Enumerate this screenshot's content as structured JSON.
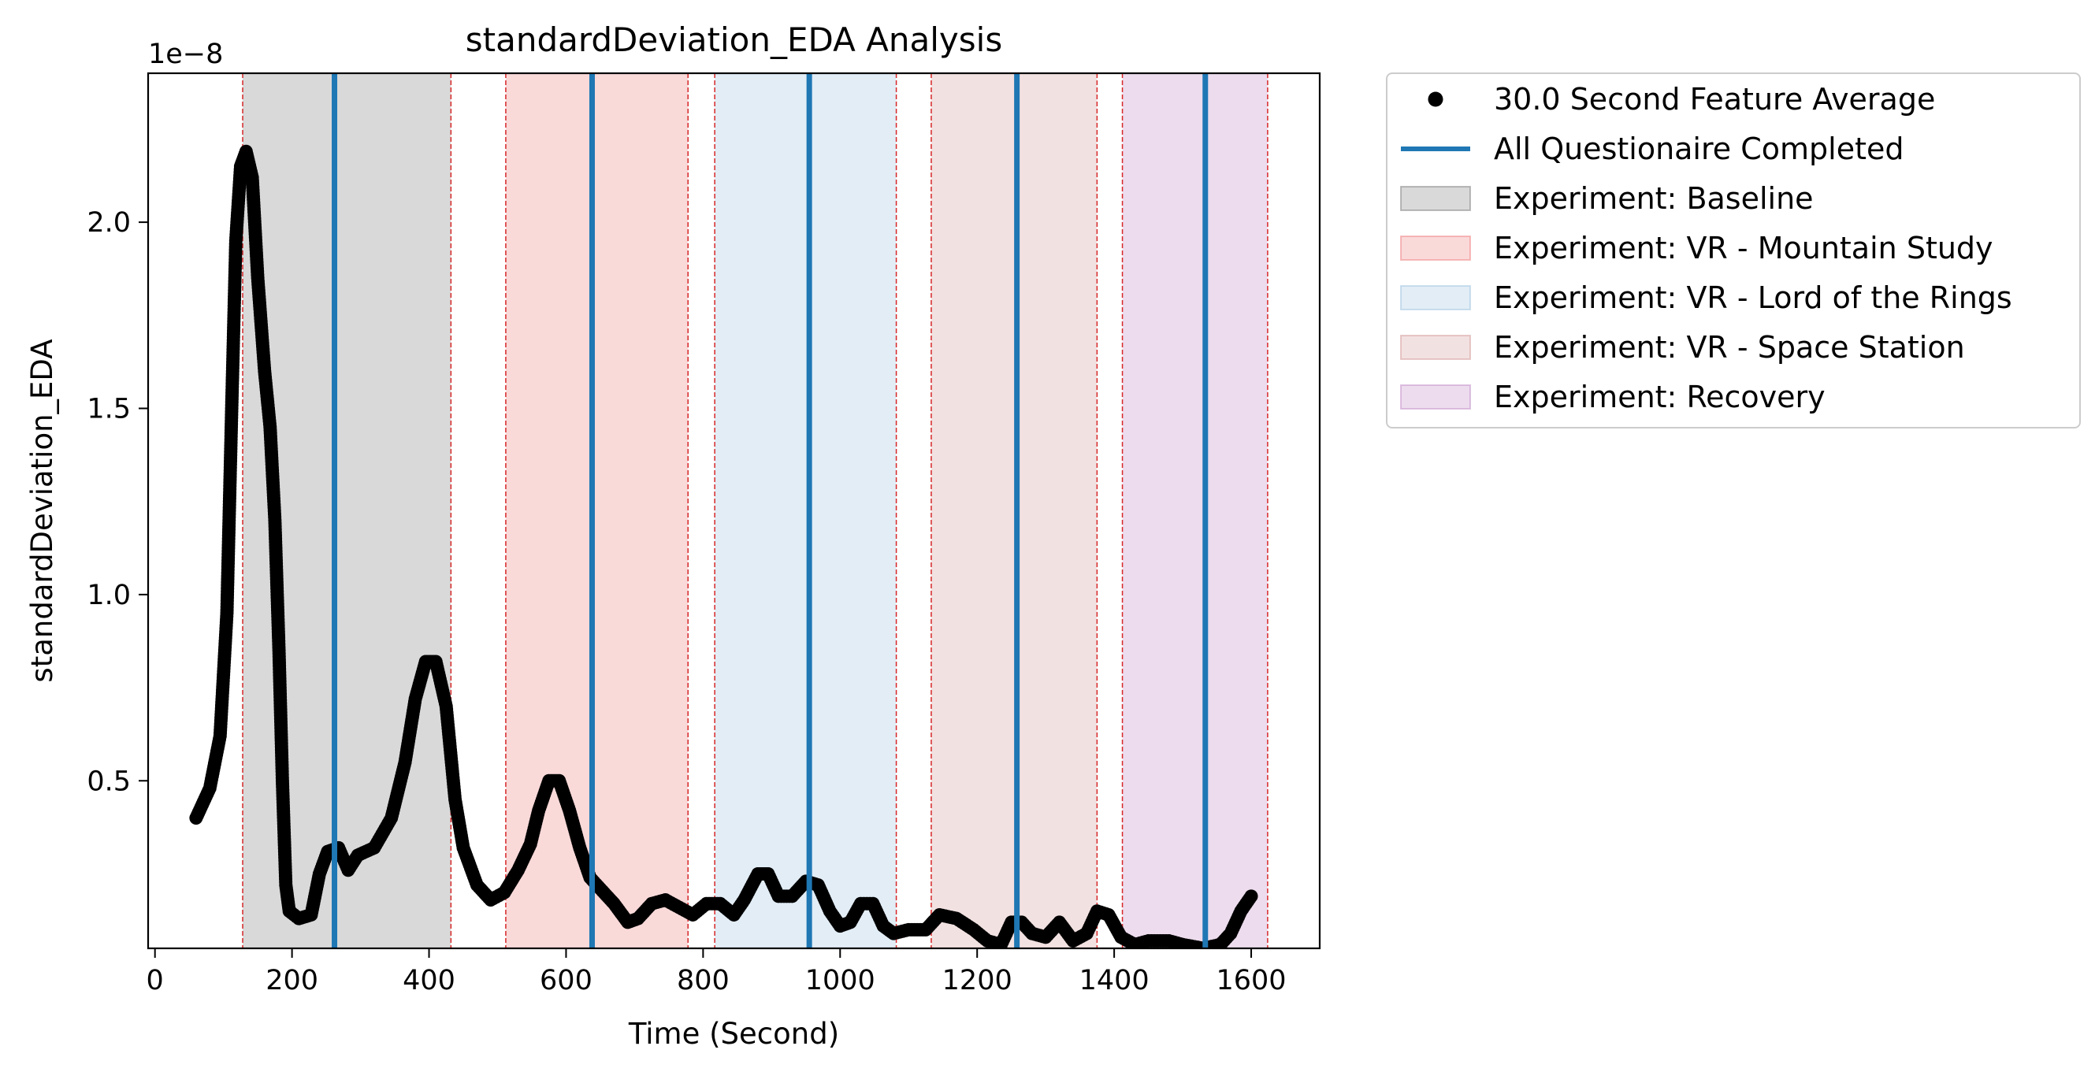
{
  "chart_data": {
    "type": "scatter",
    "title": "standardDeviation_EDA Analysis",
    "xlabel": "Time (Second)",
    "ylabel": "standardDeviation_EDA",
    "y_scale_label": "1e−8",
    "xlim": [
      -10,
      1700
    ],
    "ylim": [
      0.05,
      2.4
    ],
    "x_ticks": [
      0,
      200,
      400,
      600,
      800,
      1000,
      1200,
      1400,
      1600
    ],
    "x_tick_labels": [
      "0",
      "200",
      "400",
      "600",
      "800",
      "1000",
      "1200",
      "1400",
      "1600"
    ],
    "y_ticks": [
      0.5,
      1.0,
      1.5,
      2.0
    ],
    "y_tick_labels": [
      "0.5",
      "1.0",
      "1.5",
      "2.0"
    ],
    "legend_position": "outside-right-top",
    "series": [
      {
        "name": "30.0 Second Feature Average",
        "kind": "points",
        "color": "#000000",
        "anchors": [
          [
            60,
            0.4
          ],
          [
            80,
            0.48
          ],
          [
            95,
            0.62
          ],
          [
            105,
            0.95
          ],
          [
            112,
            1.5
          ],
          [
            118,
            1.95
          ],
          [
            125,
            2.15
          ],
          [
            133,
            2.19
          ],
          [
            142,
            2.12
          ],
          [
            150,
            1.85
          ],
          [
            160,
            1.6
          ],
          [
            168,
            1.45
          ],
          [
            175,
            1.2
          ],
          [
            181,
            0.85
          ],
          [
            186,
            0.5
          ],
          [
            191,
            0.22
          ],
          [
            196,
            0.15
          ],
          [
            210,
            0.13
          ],
          [
            228,
            0.14
          ],
          [
            240,
            0.25
          ],
          [
            252,
            0.31
          ],
          [
            268,
            0.32
          ],
          [
            282,
            0.26
          ],
          [
            296,
            0.3
          ],
          [
            320,
            0.32
          ],
          [
            345,
            0.4
          ],
          [
            365,
            0.55
          ],
          [
            380,
            0.72
          ],
          [
            395,
            0.82
          ],
          [
            410,
            0.82
          ],
          [
            425,
            0.7
          ],
          [
            438,
            0.45
          ],
          [
            450,
            0.32
          ],
          [
            470,
            0.22
          ],
          [
            490,
            0.18
          ],
          [
            510,
            0.2
          ],
          [
            530,
            0.26
          ],
          [
            548,
            0.33
          ],
          [
            560,
            0.42
          ],
          [
            575,
            0.5
          ],
          [
            590,
            0.5
          ],
          [
            605,
            0.42
          ],
          [
            620,
            0.32
          ],
          [
            635,
            0.24
          ],
          [
            650,
            0.21
          ],
          [
            670,
            0.17
          ],
          [
            690,
            0.12
          ],
          [
            705,
            0.13
          ],
          [
            725,
            0.17
          ],
          [
            745,
            0.18
          ],
          [
            765,
            0.16
          ],
          [
            785,
            0.14
          ],
          [
            805,
            0.17
          ],
          [
            825,
            0.17
          ],
          [
            845,
            0.14
          ],
          [
            860,
            0.18
          ],
          [
            880,
            0.25
          ],
          [
            895,
            0.25
          ],
          [
            910,
            0.19
          ],
          [
            930,
            0.19
          ],
          [
            950,
            0.23
          ],
          [
            968,
            0.22
          ],
          [
            985,
            0.15
          ],
          [
            1000,
            0.11
          ],
          [
            1015,
            0.12
          ],
          [
            1030,
            0.17
          ],
          [
            1048,
            0.17
          ],
          [
            1063,
            0.11
          ],
          [
            1078,
            0.09
          ],
          [
            1100,
            0.1
          ],
          [
            1125,
            0.1
          ],
          [
            1145,
            0.14
          ],
          [
            1170,
            0.13
          ],
          [
            1195,
            0.1
          ],
          [
            1215,
            0.07
          ],
          [
            1235,
            0.06
          ],
          [
            1250,
            0.12
          ],
          [
            1265,
            0.12
          ],
          [
            1280,
            0.09
          ],
          [
            1300,
            0.08
          ],
          [
            1320,
            0.12
          ],
          [
            1340,
            0.07
          ],
          [
            1360,
            0.09
          ],
          [
            1375,
            0.15
          ],
          [
            1392,
            0.14
          ],
          [
            1410,
            0.08
          ],
          [
            1430,
            0.06
          ],
          [
            1450,
            0.07
          ],
          [
            1480,
            0.07
          ],
          [
            1500,
            0.06
          ],
          [
            1530,
            0.05
          ],
          [
            1555,
            0.06
          ],
          [
            1570,
            0.09
          ],
          [
            1585,
            0.15
          ],
          [
            1600,
            0.19
          ]
        ]
      },
      {
        "name": "All Questionaire Completed",
        "kind": "vlines",
        "color": "#1f77b4",
        "x": [
          262,
          638,
          955,
          1258,
          1533
        ]
      }
    ],
    "regions": [
      {
        "name": "Experiment: Baseline",
        "color": "#808080",
        "start": 128,
        "end": 432
      },
      {
        "name": "Experiment: VR - Mountain Study",
        "color": "#f08080",
        "start": 512,
        "end": 778
      },
      {
        "name": "Experiment: VR - Lord of the Rings",
        "color": "#9ec3e0",
        "start": 817,
        "end": 1082
      },
      {
        "name": "Experiment: VR - Space Station",
        "color": "#d49a9a",
        "start": 1133,
        "end": 1375
      },
      {
        "name": "Experiment: Recovery",
        "color": "#c28bc8",
        "start": 1412,
        "end": 1624
      }
    ],
    "region_boundary_color": "#d62728"
  }
}
